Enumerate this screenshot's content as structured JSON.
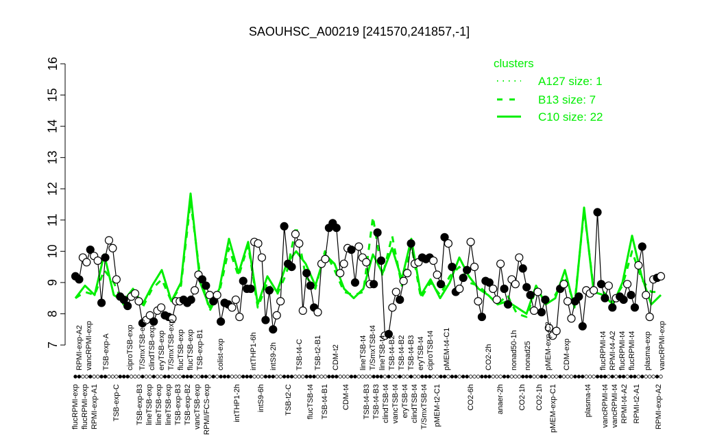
{
  "chart_data": {
    "type": "line",
    "title": "SAOUHSC_A00219 [241570,241857,-1]",
    "xlabel": "",
    "ylabel": "",
    "ylim": [
      7,
      16
    ],
    "yticks": [
      "7",
      "8",
      "9",
      "10",
      "11",
      "12",
      "13",
      "14",
      "15",
      "16"
    ],
    "grid": false,
    "colors": {
      "points": "#000000",
      "clusters": "#00ee00"
    },
    "points": [
      [
        9.2,
        1
      ],
      [
        9.1,
        1
      ],
      [
        9.8,
        0
      ],
      [
        9.65,
        0
      ],
      [
        10.05,
        1
      ],
      [
        9.85,
        0
      ],
      [
        9.7,
        0
      ],
      [
        8.35,
        1
      ],
      [
        9.8,
        1
      ],
      [
        10.35,
        0
      ],
      [
        10.1,
        0
      ],
      [
        9.1,
        0
      ],
      [
        8.55,
        1
      ],
      [
        8.45,
        1
      ],
      [
        8.25,
        1
      ],
      [
        8.55,
        0
      ],
      [
        8.65,
        0
      ],
      [
        8.4,
        0
      ],
      [
        7.7,
        1
      ],
      [
        7.8,
        0
      ],
      [
        7.95,
        0
      ],
      [
        7.75,
        1
      ],
      [
        8.1,
        0
      ],
      [
        8.2,
        0
      ],
      [
        7.95,
        1
      ],
      [
        7.9,
        1
      ],
      [
        7.85,
        0
      ],
      [
        8.4,
        0
      ],
      [
        8.4,
        0
      ],
      [
        8.45,
        1
      ],
      [
        8.35,
        1
      ],
      [
        8.45,
        1
      ],
      [
        8.75,
        0
      ],
      [
        9.25,
        0
      ],
      [
        9.1,
        1
      ],
      [
        8.9,
        1
      ],
      [
        8.6,
        0
      ],
      [
        8.4,
        1
      ],
      [
        8.6,
        0
      ],
      [
        7.75,
        1
      ],
      [
        8.35,
        1
      ],
      [
        8.3,
        1
      ],
      [
        8.2,
        0
      ],
      [
        8.45,
        0
      ],
      [
        7.9,
        0
      ],
      [
        9.05,
        1
      ],
      [
        8.8,
        1
      ],
      [
        8.8,
        1
      ],
      [
        10.3,
        0
      ],
      [
        10.25,
        0
      ],
      [
        9.8,
        0
      ],
      [
        7.8,
        1
      ],
      [
        8.75,
        1
      ],
      [
        7.5,
        1
      ],
      [
        7.95,
        0
      ],
      [
        8.4,
        0
      ],
      [
        10.8,
        1
      ],
      [
        9.6,
        1
      ],
      [
        9.5,
        1
      ],
      [
        10.55,
        0
      ],
      [
        10.25,
        0
      ],
      [
        8.1,
        0
      ],
      [
        9.3,
        1
      ],
      [
        8.9,
        1
      ],
      [
        8.2,
        1
      ],
      [
        8.05,
        0
      ],
      [
        9.6,
        0
      ],
      [
        9.75,
        0
      ],
      [
        10.75,
        1
      ],
      [
        10.9,
        1
      ],
      [
        10.75,
        1
      ],
      [
        9.3,
        0
      ],
      [
        9.6,
        0
      ],
      [
        10.1,
        0
      ],
      [
        10.05,
        1
      ],
      [
        9.0,
        1
      ],
      [
        10.15,
        0
      ],
      [
        9.8,
        0
      ],
      [
        9.65,
        0
      ],
      [
        8.95,
        0
      ],
      [
        8.95,
        1
      ],
      [
        10.6,
        1
      ],
      [
        9.7,
        1
      ],
      [
        7.3,
        0
      ],
      [
        7.35,
        1
      ],
      [
        8.2,
        0
      ],
      [
        8.7,
        0
      ],
      [
        8.45,
        1
      ],
      [
        9.05,
        0
      ],
      [
        9.3,
        0
      ],
      [
        10.25,
        1
      ],
      [
        9.6,
        0
      ],
      [
        9.65,
        0
      ],
      [
        9.8,
        1
      ],
      [
        9.75,
        1
      ],
      [
        9.8,
        1
      ],
      [
        9.7,
        0
      ],
      [
        9.25,
        0
      ],
      [
        8.95,
        1
      ],
      [
        10.45,
        1
      ],
      [
        10.25,
        0
      ],
      [
        9.5,
        1
      ],
      [
        8.7,
        1
      ],
      [
        8.8,
        0
      ],
      [
        9.15,
        1
      ],
      [
        9.4,
        1
      ],
      [
        10.3,
        0
      ],
      [
        9.5,
        0
      ],
      [
        8.4,
        0
      ],
      [
        7.9,
        1
      ],
      [
        9.05,
        1
      ],
      [
        9.0,
        1
      ],
      [
        8.8,
        0
      ],
      [
        8.45,
        0
      ],
      [
        9.6,
        0
      ],
      [
        8.8,
        1
      ],
      [
        8.3,
        1
      ],
      [
        9.1,
        0
      ],
      [
        8.95,
        0
      ],
      [
        9.8,
        0
      ],
      [
        9.45,
        1
      ],
      [
        8.85,
        1
      ],
      [
        8.6,
        1
      ],
      [
        8.1,
        0
      ],
      [
        8.7,
        0
      ],
      [
        8.05,
        1
      ],
      [
        8.45,
        1
      ],
      [
        7.55,
        0
      ],
      [
        7.3,
        0
      ],
      [
        7.45,
        0
      ],
      [
        8.8,
        1
      ],
      [
        8.95,
        0
      ],
      [
        8.4,
        0
      ],
      [
        7.85,
        0
      ],
      [
        8.4,
        1
      ],
      [
        8.55,
        1
      ],
      [
        7.6,
        1
      ],
      [
        8.75,
        0
      ],
      [
        8.65,
        0
      ],
      [
        8.75,
        0
      ],
      [
        11.25,
        1
      ],
      [
        8.95,
        1
      ],
      [
        8.5,
        1
      ],
      [
        8.9,
        0
      ],
      [
        8.2,
        1
      ],
      [
        8.5,
        0
      ],
      [
        8.55,
        1
      ],
      [
        8.45,
        1
      ],
      [
        8.95,
        0
      ],
      [
        8.6,
        1
      ],
      [
        8.2,
        1
      ],
      [
        9.55,
        0
      ],
      [
        10.15,
        1
      ],
      [
        8.6,
        0
      ],
      [
        7.9,
        0
      ],
      [
        9.1,
        0
      ],
      [
        9.15,
        1
      ],
      [
        9.2,
        0
      ]
    ],
    "series": [
      {
        "name": "A127 size: 1",
        "style": "dotted",
        "values": []
      },
      {
        "name": "B13 size: 7",
        "style": "dashed",
        "values": [
          8.5,
          8.7,
          8.6,
          9.4,
          9.0,
          8.3,
          8.7,
          8.2,
          8.8,
          9.1,
          8.4,
          8.9,
          11.6,
          9.2,
          8.1,
          8.7,
          10.1,
          9.2,
          10.2,
          8.2,
          9.0,
          8.6,
          9.3,
          10.8,
          9.2,
          8.8,
          10.0,
          9.4,
          8.7,
          8.6,
          8.7,
          11.1,
          9.2,
          10.5,
          8.9,
          10.2,
          8.5,
          9.0,
          8.6,
          9.2,
          9.5,
          9.0,
          8.9,
          8.6,
          8.3,
          8.6,
          8.0,
          7.9,
          8.8,
          8.4,
          8.6,
          9.2,
          8.3,
          11.3,
          8.8,
          8.7,
          8.4,
          8.9,
          10.0,
          9.1,
          8.7,
          8.7
        ]
      },
      {
        "name": "C10 size: 22",
        "style": "solid",
        "values": [
          8.5,
          8.9,
          8.6,
          9.9,
          8.6,
          8.4,
          8.8,
          8.3,
          8.9,
          9.4,
          8.4,
          9.0,
          11.85,
          9.0,
          8.2,
          8.8,
          10.4,
          9.3,
          10.3,
          8.3,
          9.2,
          8.7,
          9.6,
          10.0,
          9.6,
          8.9,
          9.9,
          9.6,
          8.8,
          8.5,
          8.8,
          9.9,
          9.3,
          10.1,
          9.1,
          10.4,
          8.6,
          9.1,
          8.5,
          9.0,
          9.8,
          9.2,
          8.8,
          8.6,
          8.3,
          8.4,
          8.2,
          8.0,
          8.9,
          8.3,
          8.5,
          9.4,
          8.2,
          11.4,
          8.7,
          8.6,
          8.3,
          9.0,
          10.5,
          9.2,
          8.3,
          8.6
        ]
      }
    ],
    "legend": {
      "title": "clusters",
      "position": "top-right"
    },
    "xtick_labels_upper": [
      "RPMI-exp-A2",
      "vancRPMI-exp",
      "TSB-exp-A",
      "ciproTSB-exp",
      "T/SmxTSB-exp",
      "clindTSB-exp",
      "eryTSB-exp",
      "T/SmxTSB-exp",
      "flucTSB-exp",
      "flucTSB-exp",
      "TSB-exp-B1",
      "colist-exp",
      "intTHP1-6h",
      "intS9-2h",
      "TSB-t4-C",
      "TSB-t2-B1",
      "CDM-t2",
      "lineTSB-t4",
      "T/SmxTSB-t4",
      "lineTSB-t4",
      "TSB-t4-B2",
      "TSB-t4-B2",
      "TSB-t4-B3",
      "eryTSB-t4",
      "ciproTSB-t4",
      "pMEM-t4-C1",
      "CO2-2h",
      "nonad50-1h",
      "nonad25",
      "pMEM-exp-C2",
      "CDM-exp",
      "flucRPMI-t4",
      "RPMI-t4-A2",
      "flucRPMI-t4",
      "flucRPMI-t4",
      "plasma-exp",
      "vancRPMI-exp"
    ],
    "xtick_labels_lower": [
      "flucRPMI-exp",
      "flucRPMI-exp",
      "RPMI-exp-A1",
      "TSB-exp-C",
      "TSB-exp-B3",
      "lineTSB-exp",
      "lineTSB-exp",
      "lineTSB-exp",
      "TSB-exp-B3",
      "TSB-exp-B2",
      "vancTSB-exp",
      "RPMI/FCS-exp",
      "intTHP1-2h",
      "intS9-6h",
      "TSB-t2-C",
      "flucTSB-t4",
      "TSB-t4-B1",
      "CDM-t4",
      "TSB-t4-B3",
      "TSB-t4-B3",
      "clindTSB-t4",
      "vancTSB-t4",
      "eryTSB-t4",
      "clindTSB-t4",
      "T/SmxTSB-t4",
      "pMEM-t2-C1",
      "CO2-6h",
      "anaer-2h",
      "CO2-1h",
      "CO2-1h",
      "pMEM-exp-C1",
      "plasma-t4",
      "vancRPMI-t4",
      "vancRPMI-t4",
      "RPMI-t4-A2",
      "RPMI-t2-A1",
      "RPMI-exp-A2"
    ]
  }
}
